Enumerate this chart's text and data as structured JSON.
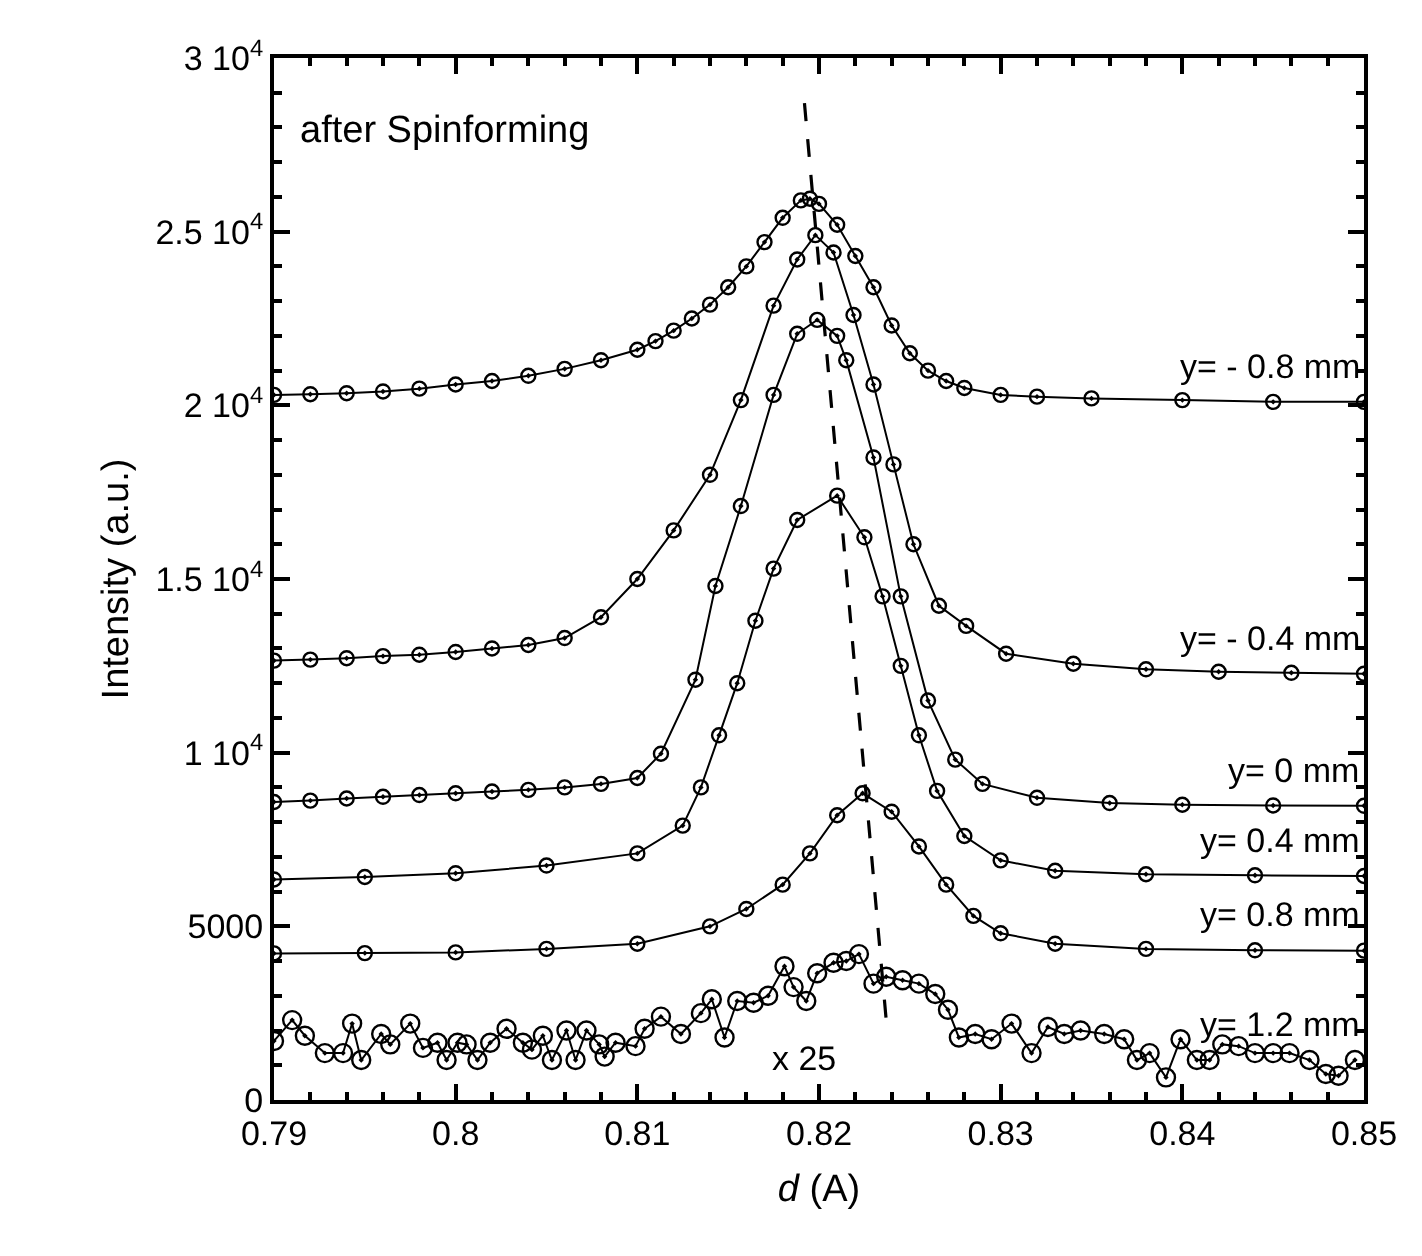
{
  "chart_data": {
    "type": "line",
    "xlabel": "d (A)",
    "ylabel": "Intensity (a.u.)",
    "annotations": [
      "after Spinforming",
      "x 25"
    ],
    "xlim": [
      0.79,
      0.85
    ],
    "ylim": [
      0,
      30000
    ],
    "xticks": [
      0.79,
      {
        "value": 0.792,
        "label": null
      },
      {
        "value": 0.794,
        "label": null
      },
      {
        "value": 0.796,
        "label": null
      },
      {
        "value": 0.798,
        "label": null
      },
      0.8,
      {
        "value": 0.802,
        "label": null
      },
      {
        "value": 0.804,
        "label": null
      },
      {
        "value": 0.806,
        "label": null
      },
      {
        "value": 0.808,
        "label": null
      },
      0.81,
      {
        "value": 0.812,
        "label": null
      },
      {
        "value": 0.814,
        "label": null
      },
      {
        "value": 0.816,
        "label": null
      },
      {
        "value": 0.818,
        "label": null
      },
      0.82,
      {
        "value": 0.822,
        "label": null
      },
      {
        "value": 0.824,
        "label": null
      },
      {
        "value": 0.826,
        "label": null
      },
      {
        "value": 0.828,
        "label": null
      },
      0.83,
      {
        "value": 0.832,
        "label": null
      },
      {
        "value": 0.834,
        "label": null
      },
      {
        "value": 0.836,
        "label": null
      },
      {
        "value": 0.838,
        "label": null
      },
      0.84,
      {
        "value": 0.842,
        "label": null
      },
      {
        "value": 0.844,
        "label": null
      },
      {
        "value": 0.846,
        "label": null
      },
      {
        "value": 0.848,
        "label": null
      },
      0.85
    ],
    "yticks": [
      0,
      {
        "value": 1000,
        "label": null
      },
      {
        "value": 2000,
        "label": null
      },
      {
        "value": 3000,
        "label": null
      },
      {
        "value": 4000,
        "label": null
      },
      5000,
      {
        "value": 6000,
        "label": null
      },
      {
        "value": 7000,
        "label": null
      },
      {
        "value": 8000,
        "label": null
      },
      {
        "value": 9000,
        "label": null
      },
      {
        "value": 10000,
        "label": "1 10$^{4}$"
      },
      {
        "value": 11000,
        "label": null
      },
      {
        "value": 12000,
        "label": null
      },
      {
        "value": 13000,
        "label": null
      },
      {
        "value": 14000,
        "label": null
      },
      {
        "value": 15000,
        "label": "1.5 10$^{4}$"
      },
      {
        "value": 16000,
        "label": null
      },
      {
        "value": 17000,
        "label": null
      },
      {
        "value": 18000,
        "label": null
      },
      {
        "value": 19000,
        "label": null
      },
      {
        "value": 20000,
        "label": "2 10$^{4}$"
      },
      {
        "value": 21000,
        "label": null
      },
      {
        "value": 22000,
        "label": null
      },
      {
        "value": 23000,
        "label": null
      },
      {
        "value": 24000,
        "label": null
      },
      {
        "value": 25000,
        "label": "2.5 10$^{4}$"
      },
      {
        "value": 26000,
        "label": null
      },
      {
        "value": 27000,
        "label": null
      },
      {
        "value": 28000,
        "label": null
      },
      {
        "value": 29000,
        "label": null
      },
      {
        "value": 30000,
        "label": "3 10$^{4}$"
      }
    ],
    "legend": "right",
    "marker": "circle",
    "line_style": "solid",
    "series": [
      {
        "name": "y= - 0.8 mm",
        "color": "#000000",
        "x": [
          0.79,
          0.792,
          0.794,
          0.796,
          0.798,
          0.8,
          0.802,
          0.804,
          0.806,
          0.808,
          0.81,
          0.811,
          0.812,
          0.813,
          0.814,
          0.815,
          0.816,
          0.817,
          0.818,
          0.819,
          0.8195,
          0.82,
          0.821,
          0.822,
          0.823,
          0.824,
          0.825,
          0.826,
          0.827,
          0.828,
          0.83,
          0.832,
          0.835,
          0.84,
          0.845,
          0.85
        ],
        "values": [
          20300,
          20320,
          20350,
          20400,
          20480,
          20600,
          20700,
          20850,
          21050,
          21300,
          21600,
          21850,
          22150,
          22500,
          22900,
          23400,
          24000,
          24700,
          25400,
          25900,
          25950,
          25800,
          25200,
          24300,
          23400,
          22300,
          21500,
          21000,
          20700,
          20500,
          20300,
          20250,
          20200,
          20150,
          20100,
          20100
        ]
      },
      {
        "name": "y= - 0.4 mm",
        "color": "#000000",
        "x": [
          0.79,
          0.792,
          0.794,
          0.796,
          0.798,
          0.8,
          0.802,
          0.804,
          0.806,
          0.808,
          0.81,
          0.812,
          0.814,
          0.8157,
          0.8175,
          0.8188,
          0.8198,
          0.8208,
          0.8219,
          0.823,
          0.8241,
          0.8252,
          0.8266,
          0.8281,
          0.8303,
          0.834,
          0.838,
          0.842,
          0.846,
          0.85
        ],
        "values": [
          12650,
          12680,
          12720,
          12780,
          12820,
          12900,
          13000,
          13100,
          13300,
          13900,
          15000,
          16400,
          18000,
          20150,
          22870,
          24200,
          24900,
          24400,
          22600,
          20600,
          18300,
          16000,
          14230,
          13650,
          12850,
          12560,
          12400,
          12330,
          12300,
          12270
        ]
      },
      {
        "name": "y= 0 mm",
        "color": "#000000",
        "x": [
          0.79,
          0.792,
          0.794,
          0.796,
          0.798,
          0.8,
          0.802,
          0.804,
          0.806,
          0.808,
          0.81,
          0.8113,
          0.8132,
          0.8143,
          0.8157,
          0.8175,
          0.8188,
          0.8199,
          0.821,
          0.8215,
          0.823,
          0.8245,
          0.826,
          0.8275,
          0.829,
          0.832,
          0.836,
          0.84,
          0.845,
          0.85
        ],
        "values": [
          8580,
          8620,
          8680,
          8730,
          8780,
          8830,
          8880,
          8930,
          9000,
          9100,
          9270,
          9970,
          12100,
          14800,
          17100,
          20300,
          22060,
          22460,
          22000,
          21300,
          18500,
          14500,
          11500,
          9800,
          9100,
          8700,
          8550,
          8500,
          8480,
          8470
        ]
      },
      {
        "name": "y= 0.4 mm",
        "color": "#000000",
        "x": [
          0.79,
          0.795,
          0.8,
          0.805,
          0.81,
          0.8125,
          0.8135,
          0.8145,
          0.8155,
          0.8165,
          0.8175,
          0.8188,
          0.821,
          0.8225,
          0.8235,
          0.8245,
          0.8255,
          0.8265,
          0.828,
          0.83,
          0.833,
          0.838,
          0.844,
          0.85
        ],
        "values": [
          6350,
          6420,
          6530,
          6750,
          7100,
          7900,
          9000,
          10500,
          12000,
          13800,
          15300,
          16700,
          17400,
          16200,
          14500,
          12500,
          10500,
          8900,
          7600,
          6900,
          6600,
          6500,
          6470,
          6450
        ]
      },
      {
        "name": "y= 0.8 mm",
        "color": "#000000",
        "x": [
          0.79,
          0.795,
          0.8,
          0.805,
          0.81,
          0.814,
          0.816,
          0.818,
          0.8195,
          0.821,
          0.8224,
          0.824,
          0.8255,
          0.827,
          0.8285,
          0.83,
          0.833,
          0.838,
          0.844,
          0.85
        ],
        "values": [
          4220,
          4230,
          4250,
          4350,
          4500,
          5000,
          5500,
          6200,
          7100,
          8200,
          8830,
          8300,
          7300,
          6200,
          5300,
          4800,
          4500,
          4350,
          4310,
          4300
        ]
      },
      {
        "name": "y= 1.2 mm",
        "color": "#000000",
        "x": [
          0.79,
          0.791,
          0.7917,
          0.7928,
          0.7938,
          0.7943,
          0.7948,
          0.7959,
          0.7964,
          0.7975,
          0.7982,
          0.799,
          0.7995,
          0.8001,
          0.8006,
          0.8012,
          0.8019,
          0.8028,
          0.8037,
          0.8042,
          0.8048,
          0.8053,
          0.8061,
          0.8066,
          0.8072,
          0.8079,
          0.8082,
          0.8088,
          0.8099,
          0.8104,
          0.8113,
          0.8124,
          0.8135,
          0.8141,
          0.8148,
          0.8155,
          0.8164,
          0.8172,
          0.8181,
          0.8186,
          0.8193,
          0.8199,
          0.8208,
          0.8215,
          0.8222,
          0.823,
          0.8237,
          0.8246,
          0.8255,
          0.8264,
          0.8271,
          0.8277,
          0.8286,
          0.8295,
          0.8306,
          0.8317,
          0.8326,
          0.8335,
          0.8344,
          0.8357,
          0.8368,
          0.8375,
          0.8382,
          0.8391,
          0.8399,
          0.8408,
          0.8415,
          0.8422,
          0.8431,
          0.844,
          0.845,
          0.8459,
          0.847,
          0.8479,
          0.8486,
          0.8495
        ],
        "values": [
          1700,
          2300,
          1850,
          1350,
          1350,
          2200,
          1150,
          1900,
          1600,
          2200,
          1500,
          1650,
          1150,
          1650,
          1600,
          1150,
          1650,
          2050,
          1650,
          1450,
          1850,
          1150,
          2000,
          1150,
          2000,
          1600,
          1250,
          1650,
          1550,
          2050,
          2400,
          1900,
          2500,
          2900,
          1800,
          2850,
          2800,
          3000,
          3850,
          3250,
          2850,
          3650,
          3950,
          4000,
          4200,
          3350,
          3550,
          3450,
          3350,
          3050,
          2600,
          1800,
          1900,
          1750,
          2200,
          1350,
          2100,
          1900,
          2000,
          1900,
          1750,
          1150,
          1350,
          650,
          1750,
          1150,
          1150,
          1600,
          1550,
          1350,
          1350,
          1350,
          1150,
          750,
          700,
          1150
        ]
      },
      {
        "type": "line",
        "marker": "none",
        "line_style": "dashed",
        "color": "#000000",
        "x": [
          0.8192,
          0.8237
        ],
        "values": [
          28700,
          2300
        ]
      }
    ]
  }
}
